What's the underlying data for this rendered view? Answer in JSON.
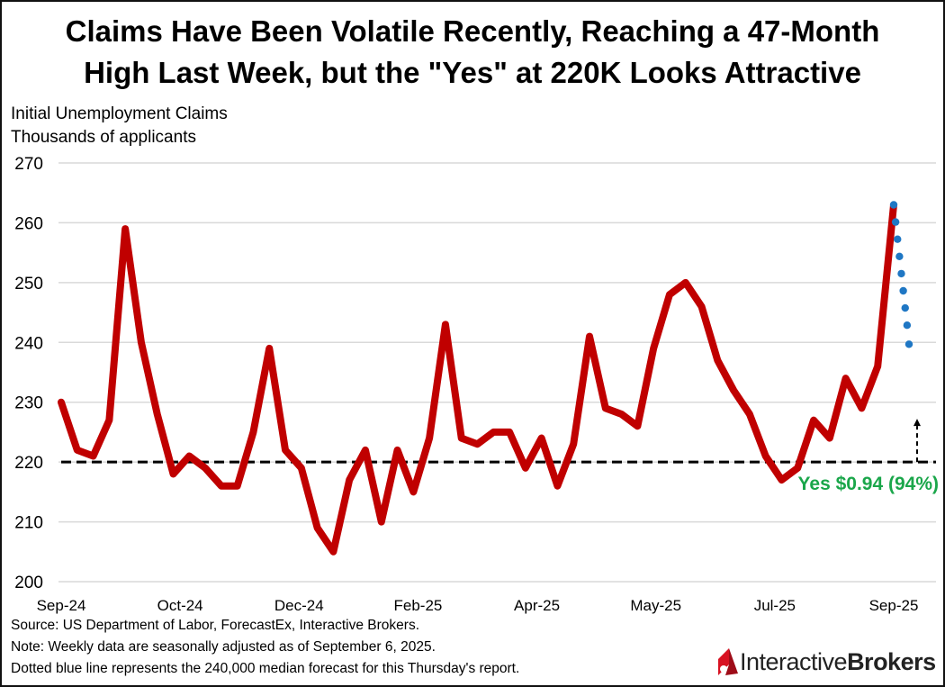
{
  "title_line1": "Claims Have Been Volatile Recently, Reaching a 47-Month",
  "title_line2": "High Last Week, but the \"Yes\" at 220K Looks Attractive",
  "subtitle_line1": "Initial Unemployment Claims",
  "subtitle_line2": "Thousands of applicants",
  "footnotes": [
    "Source: US Department of Labor, ForecastEx, Interactive Brokers.",
    "Note: Weekly data are seasonally adjusted as of September 6, 2025.",
    "Dotted blue line represents the 240,000 median forecast for this Thursday's report."
  ],
  "logo": {
    "text_regular": "Interactive",
    "text_bold": "Brokers",
    "color": "#d81222"
  },
  "chart_data": {
    "type": "line",
    "title": "Claims Have Been Volatile Recently, Reaching a 47-Month High Last Week, but the \"Yes\" at 220K Looks Attractive",
    "ylabel": "Initial Unemployment Claims, Thousands of applicants",
    "ylim": [
      200,
      270
    ],
    "yticks": [
      200,
      210,
      220,
      230,
      240,
      250,
      260,
      270
    ],
    "xtick_labels": [
      "Sep-24",
      "Oct-24",
      "Dec-24",
      "Feb-25",
      "Apr-25",
      "May-25",
      "Jul-25",
      "Sep-25"
    ],
    "grid": true,
    "series": [
      {
        "color": "#c00000",
        "style": "solid",
        "values": [
          230,
          222,
          221,
          227,
          259,
          240,
          228,
          218,
          221,
          219,
          216,
          216,
          225,
          239,
          222,
          219,
          209,
          205,
          217,
          222,
          210,
          222,
          215,
          224,
          243,
          224,
          223,
          225,
          225,
          219,
          224,
          216,
          223,
          241,
          229,
          228,
          226,
          239,
          248,
          250,
          246,
          237,
          232,
          228,
          221,
          217,
          219,
          227,
          224,
          234,
          229,
          236,
          263
        ]
      }
    ],
    "forecast": {
      "color": "#1f77c4",
      "style": "dotted",
      "from": 263,
      "to": 240
    },
    "threshold": {
      "value": 220,
      "style": "dashed",
      "color": "#000000",
      "label": "Yes $0.94 (94%)",
      "label_color": "#1aa64a"
    }
  }
}
